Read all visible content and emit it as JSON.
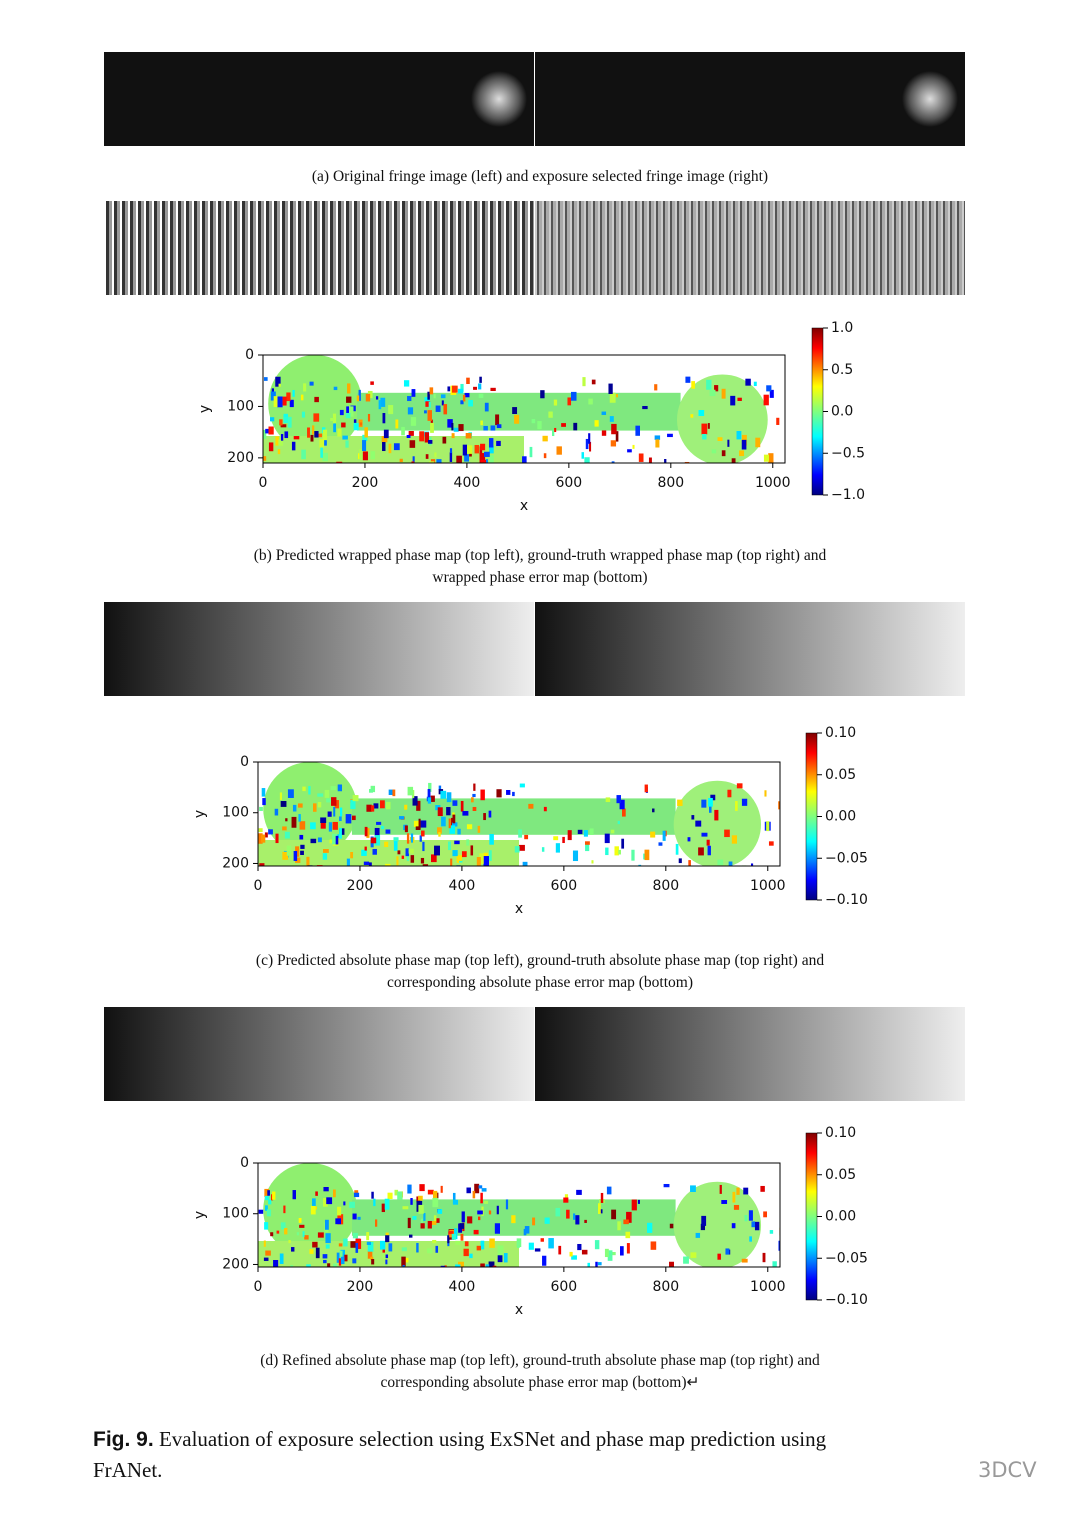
{
  "panels": [
    {
      "caption": [
        "(a) Original fringe image (left) and exposure selected fringe image (right)"
      ]
    },
    {
      "caption": [
        "(b) Predicted wrapped phase map (top left), ground-truth wrapped phase map (top right) and",
        "wrapped phase error map (bottom)"
      ]
    },
    {
      "caption": [
        "(c) Predicted absolute phase map (top left), ground-truth absolute phase map (top right) and",
        "corresponding absolute phase error map (bottom)"
      ]
    },
    {
      "caption": [
        "(d) Refined absolute phase map (top left), ground-truth absolute phase map (top right) and",
        "corresponding absolute phase error map (bottom)↵"
      ]
    }
  ],
  "error_maps": [
    {
      "xlabel": "x",
      "ylabel": "y",
      "xlim": [
        0,
        1024
      ],
      "ylim": [
        0,
        210
      ],
      "xticks": [
        0,
        200,
        400,
        600,
        800,
        1000
      ],
      "yticks": [
        0,
        100,
        200
      ],
      "clim": [
        -1,
        1
      ],
      "cticks": [
        {
          "value": 1,
          "label": "1.0"
        },
        {
          "value": 0.5,
          "label": "0.5"
        },
        {
          "value": 0,
          "label": "0.0"
        },
        {
          "value": -0.5,
          "label": "−0.5"
        },
        {
          "value": -1,
          "label": "−1.0"
        }
      ]
    },
    {
      "xlabel": "x",
      "ylabel": "y",
      "xlim": [
        0,
        1024
      ],
      "ylim": [
        0,
        205
      ],
      "xticks": [
        0,
        200,
        400,
        600,
        800,
        1000
      ],
      "yticks": [
        0,
        100,
        200
      ],
      "clim": [
        -0.1,
        0.1
      ],
      "cticks": [
        {
          "value": 0.1,
          "label": "0.10"
        },
        {
          "value": 0.05,
          "label": "0.05"
        },
        {
          "value": 0,
          "label": "0.00"
        },
        {
          "value": -0.05,
          "label": "−0.05"
        },
        {
          "value": -0.1,
          "label": "−0.10"
        }
      ]
    },
    {
      "xlabel": "x",
      "ylabel": "y",
      "xlim": [
        0,
        1024
      ],
      "ylim": [
        0,
        205
      ],
      "xticks": [
        0,
        200,
        400,
        600,
        800,
        1000
      ],
      "yticks": [
        0,
        100,
        200
      ],
      "clim": [
        -0.1,
        0.1
      ],
      "cticks": [
        {
          "value": 0.1,
          "label": "0.10"
        },
        {
          "value": 0.05,
          "label": "0.05"
        },
        {
          "value": 0,
          "label": "0.00"
        },
        {
          "value": -0.05,
          "label": "−0.05"
        },
        {
          "value": -0.1,
          "label": "−0.10"
        }
      ]
    }
  ],
  "figure_caption": {
    "label": "Fig. 9.",
    "text": [
      "Evaluation of exposure selection using ExSNet and phase map prediction using",
      "FrANet."
    ]
  },
  "watermark": "3DCV"
}
